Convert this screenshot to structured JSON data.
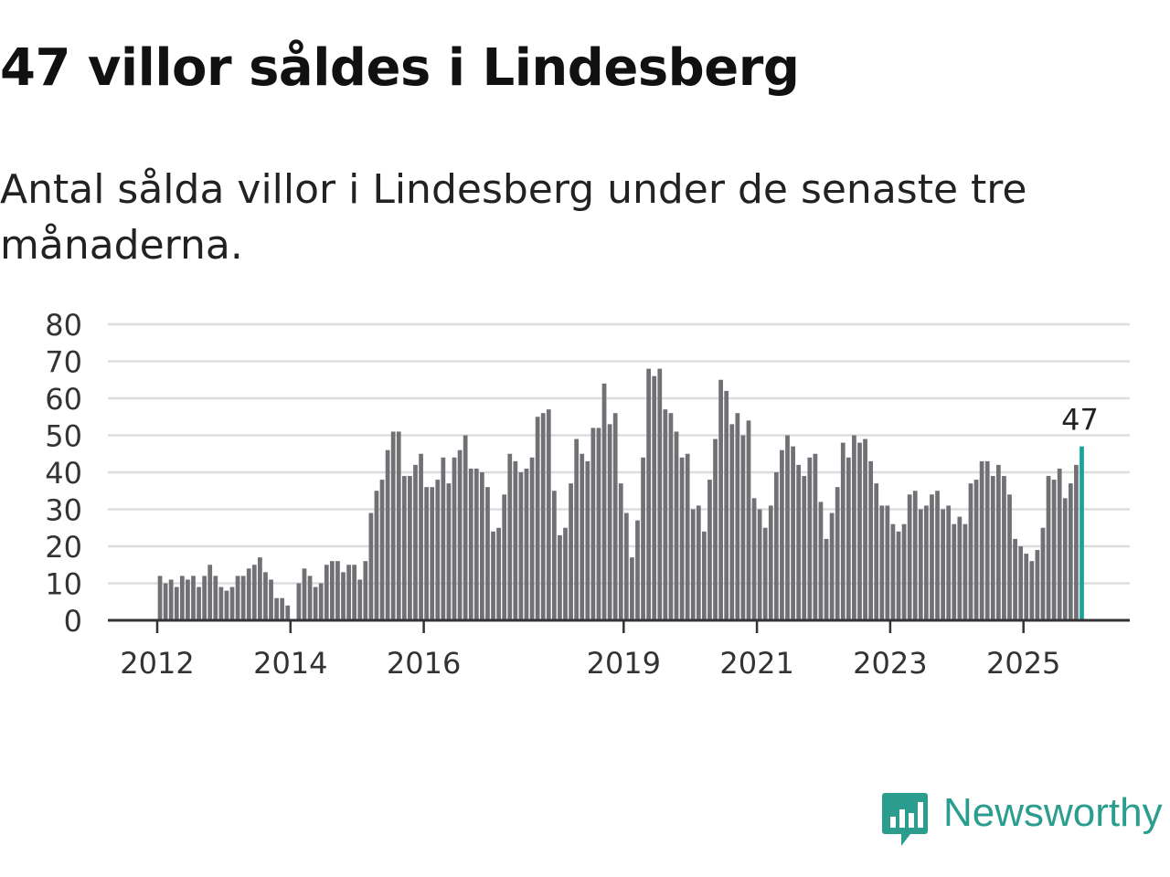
{
  "title": "47 villor såldes i Lindesberg",
  "subtitle": "Antal sålda villor i Lindesberg under de senaste tre månaderna.",
  "brand": {
    "name": "Newsworthy",
    "logo_icon": "newsworthy-chart-bubble-icon"
  },
  "colors": {
    "bar": "#707075",
    "highlight": "#1aa39a",
    "grid": "#dddddd",
    "axis": "#333333",
    "brand": "#2a9d8f"
  },
  "chart_data": {
    "type": "bar",
    "title": "47 villor såldes i Lindesberg",
    "xlabel": "",
    "ylabel": "",
    "ylim": [
      0,
      80
    ],
    "yticks": [
      0,
      10,
      20,
      30,
      40,
      50,
      60,
      70,
      80
    ],
    "grid": true,
    "xticks": [
      {
        "label": "2012",
        "value": 2012
      },
      {
        "label": "2014",
        "value": 2014
      },
      {
        "label": "2016",
        "value": 2016
      },
      {
        "label": "2019",
        "value": 2019
      },
      {
        "label": "2021",
        "value": 2021
      },
      {
        "label": "2023",
        "value": 2023
      },
      {
        "label": "2025",
        "value": 2025
      }
    ],
    "start_year": 2012,
    "months_per_year": 12,
    "highlight_label": "47",
    "values": [
      12,
      10,
      11,
      9,
      12,
      11,
      12,
      9,
      12,
      15,
      12,
      9,
      8,
      9,
      12,
      12,
      14,
      15,
      17,
      13,
      11,
      6,
      6,
      4,
      null,
      10,
      14,
      12,
      9,
      10,
      15,
      16,
      16,
      13,
      15,
      15,
      11,
      16,
      29,
      35,
      38,
      46,
      51,
      51,
      39,
      39,
      42,
      45,
      36,
      36,
      38,
      44,
      37,
      44,
      46,
      50,
      41,
      41,
      40,
      36,
      24,
      25,
      34,
      45,
      43,
      40,
      41,
      44,
      55,
      56,
      57,
      35,
      23,
      25,
      37,
      49,
      45,
      43,
      52,
      52,
      64,
      53,
      56,
      37,
      29,
      17,
      27,
      44,
      68,
      66,
      68,
      57,
      56,
      51,
      44,
      45,
      30,
      31,
      24,
      38,
      49,
      65,
      62,
      53,
      56,
      50,
      54,
      33,
      30,
      25,
      31,
      40,
      46,
      50,
      47,
      42,
      39,
      44,
      45,
      32,
      22,
      29,
      36,
      48,
      44,
      50,
      48,
      49,
      43,
      37,
      31,
      31,
      26,
      24,
      26,
      34,
      35,
      30,
      31,
      34,
      35,
      30,
      31,
      26,
      28,
      26,
      37,
      38,
      43,
      43,
      39,
      42,
      39,
      34,
      22,
      20,
      18,
      16,
      19,
      25,
      39,
      38,
      41,
      33,
      37,
      42,
      47
    ]
  }
}
